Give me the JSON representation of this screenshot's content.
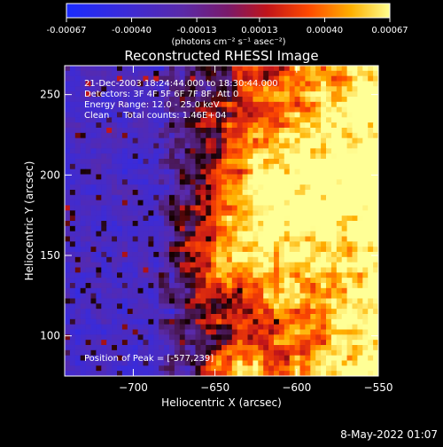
{
  "colorbar": {
    "tick_labels": [
      "-0.00067",
      "-0.00040",
      "-0.00013",
      "0.00013",
      "0.00040",
      "0.00067"
    ],
    "tick_values": [
      -0.00067,
      -0.0004,
      -0.00013,
      0.00013,
      0.0004,
      0.00067
    ],
    "range": [
      -0.00067,
      0.00067
    ],
    "units_label": "(photons cm⁻² s⁻¹ asec⁻²)"
  },
  "chart_data": {
    "type": "heatmap",
    "title": "Reconstructed RHESSI Image",
    "xlabel": "Heliocentric X (arcsec)",
    "ylabel": "Heliocentric Y (arcsec)",
    "xlim": [
      -742,
      -550
    ],
    "ylim": [
      75,
      268
    ],
    "x_ticks": [
      -700,
      -650,
      -600,
      -550
    ],
    "x_tick_labels": [
      "−700",
      "−650",
      "−600",
      "−550"
    ],
    "y_ticks": [
      100,
      150,
      200,
      250
    ],
    "y_tick_labels": [
      "100",
      "150",
      "200",
      "250"
    ],
    "annotations": [
      "21-Dec-2003 18:24:44.000 to 18:30:44.000",
      "Detectors: 3F 4F 5F 6F 7F 8F, Att 0",
      "Energy Range: 12.0 - 25.0 keV",
      "Clean     Total counts: 1.46E+04"
    ],
    "peak_label": "Position of Peak = [-577,239]",
    "peak": [
      -577,
      239
    ],
    "grid": false
  },
  "footer": {
    "timestamp": "8-May-2022 01:07"
  }
}
